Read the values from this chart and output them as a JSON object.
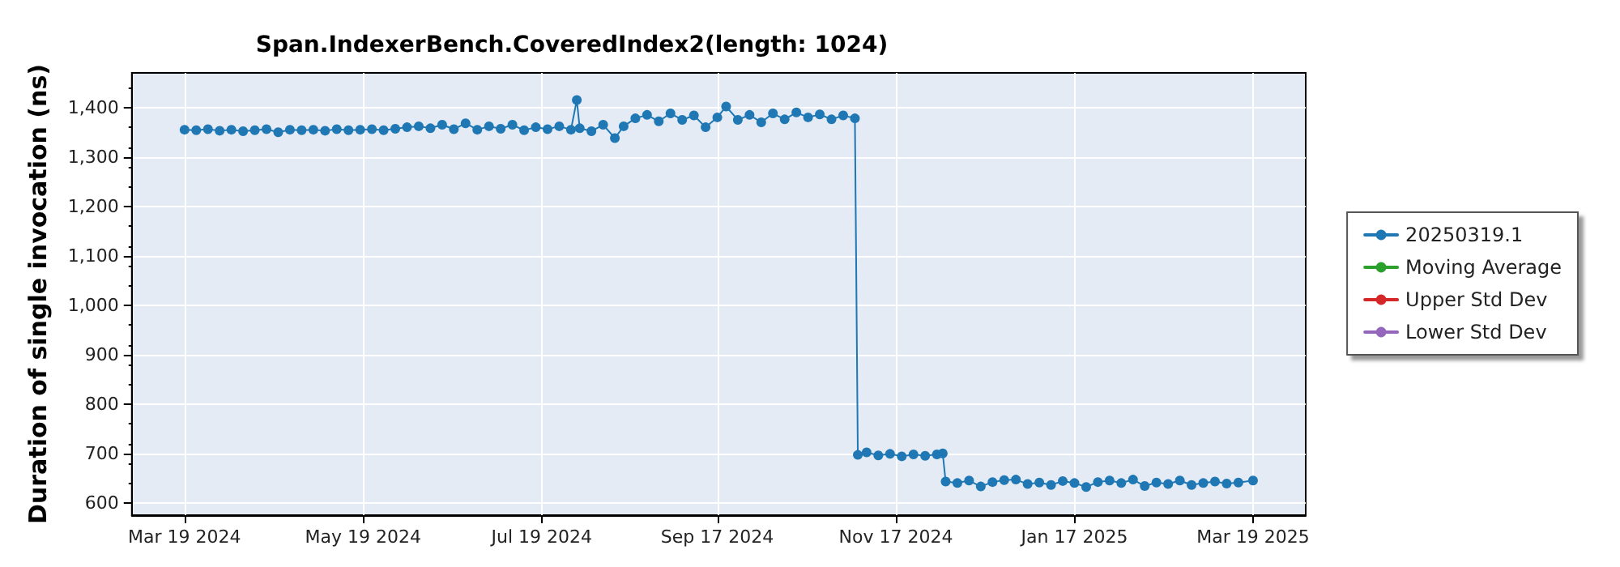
{
  "chart_data": {
    "type": "line",
    "title": "Span.IndexerBench.CoveredIndex2(length: 1024)",
    "ylabel": "Duration of single invocation (ns)",
    "xlim": [
      "2024-03-01",
      "2025-04-06"
    ],
    "xticks": [
      {
        "value": "2024-03-19",
        "label": "Mar 19 2024"
      },
      {
        "value": "2024-05-19",
        "label": "May 19 2024"
      },
      {
        "value": "2024-07-19",
        "label": "Jul 19 2024"
      },
      {
        "value": "2024-09-17",
        "label": "Sep 17 2024"
      },
      {
        "value": "2024-11-17",
        "label": "Nov 17 2024"
      },
      {
        "value": "2025-01-17",
        "label": "Jan 17 2025"
      },
      {
        "value": "2025-03-19",
        "label": "Mar 19 2025"
      }
    ],
    "ylim": [
      575,
      1470
    ],
    "yticks": [
      600,
      700,
      800,
      900,
      {
        "value": 1000,
        "label": "1,000"
      },
      {
        "value": 1100,
        "label": "1,100"
      },
      {
        "value": 1200,
        "label": "1,200"
      },
      {
        "value": 1300,
        "label": "1,300"
      },
      {
        "value": 1400,
        "label": "1,400"
      }
    ],
    "grid": true,
    "legend": "right",
    "marker": "circle",
    "line_style": "solid",
    "series": [
      {
        "name": "20250319.1",
        "color": "#1f77b4",
        "x": [
          "2024-03-19",
          "2024-03-23",
          "2024-03-27",
          "2024-03-31",
          "2024-04-04",
          "2024-04-08",
          "2024-04-12",
          "2024-04-16",
          "2024-04-20",
          "2024-04-24",
          "2024-04-28",
          "2024-05-02",
          "2024-05-06",
          "2024-05-10",
          "2024-05-14",
          "2024-05-18",
          "2024-05-22",
          "2024-05-26",
          "2024-05-30",
          "2024-06-03",
          "2024-06-07",
          "2024-06-11",
          "2024-06-15",
          "2024-06-19",
          "2024-06-23",
          "2024-06-27",
          "2024-07-01",
          "2024-07-05",
          "2024-07-09",
          "2024-07-13",
          "2024-07-17",
          "2024-07-21",
          "2024-07-25",
          "2024-07-29",
          "2024-07-31",
          "2024-08-01",
          "2024-08-05",
          "2024-08-09",
          "2024-08-13",
          "2024-08-16",
          "2024-08-20",
          "2024-08-24",
          "2024-08-28",
          "2024-09-01",
          "2024-09-05",
          "2024-09-09",
          "2024-09-13",
          "2024-09-17",
          "2024-09-20",
          "2024-09-24",
          "2024-09-28",
          "2024-10-02",
          "2024-10-06",
          "2024-10-10",
          "2024-10-14",
          "2024-10-18",
          "2024-10-22",
          "2024-10-26",
          "2024-10-30",
          "2024-11-03",
          "2024-11-04",
          "2024-11-07",
          "2024-11-11",
          "2024-11-15",
          "2024-11-19",
          "2024-11-23",
          "2024-11-27",
          "2024-12-01",
          "2024-12-03",
          "2024-12-04",
          "2024-12-08",
          "2024-12-12",
          "2024-12-16",
          "2024-12-20",
          "2024-12-24",
          "2024-12-28",
          "2025-01-01",
          "2025-01-05",
          "2025-01-09",
          "2025-01-13",
          "2025-01-17",
          "2025-01-21",
          "2025-01-25",
          "2025-01-29",
          "2025-02-02",
          "2025-02-06",
          "2025-02-10",
          "2025-02-14",
          "2025-02-18",
          "2025-02-22",
          "2025-02-26",
          "2025-03-02",
          "2025-03-06",
          "2025-03-10",
          "2025-03-14",
          "2025-03-19"
        ],
        "values": [
          1355,
          1354,
          1356,
          1353,
          1355,
          1352,
          1354,
          1356,
          1350,
          1355,
          1354,
          1355,
          1353,
          1356,
          1354,
          1355,
          1356,
          1354,
          1357,
          1360,
          1362,
          1358,
          1365,
          1356,
          1368,
          1355,
          1362,
          1357,
          1365,
          1354,
          1360,
          1356,
          1362,
          1355,
          1415,
          1358,
          1352,
          1365,
          1338,
          1362,
          1378,
          1385,
          1372,
          1388,
          1375,
          1384,
          1360,
          1380,
          1402,
          1375,
          1385,
          1370,
          1388,
          1376,
          1390,
          1380,
          1386,
          1376,
          1384,
          1378,
          697,
          702,
          696,
          699,
          694,
          698,
          695,
          698,
          700,
          643,
          640,
          645,
          633,
          642,
          646,
          647,
          638,
          641,
          636,
          644,
          640,
          632,
          642,
          645,
          640,
          647,
          634,
          641,
          638,
          645,
          636,
          640,
          643,
          639,
          641,
          645
        ]
      },
      {
        "name": "Moving Average",
        "color": "#2ca02c"
      },
      {
        "name": "Upper Std Dev",
        "color": "#d62728"
      },
      {
        "name": "Lower Std Dev",
        "color": "#9467bd"
      }
    ]
  }
}
